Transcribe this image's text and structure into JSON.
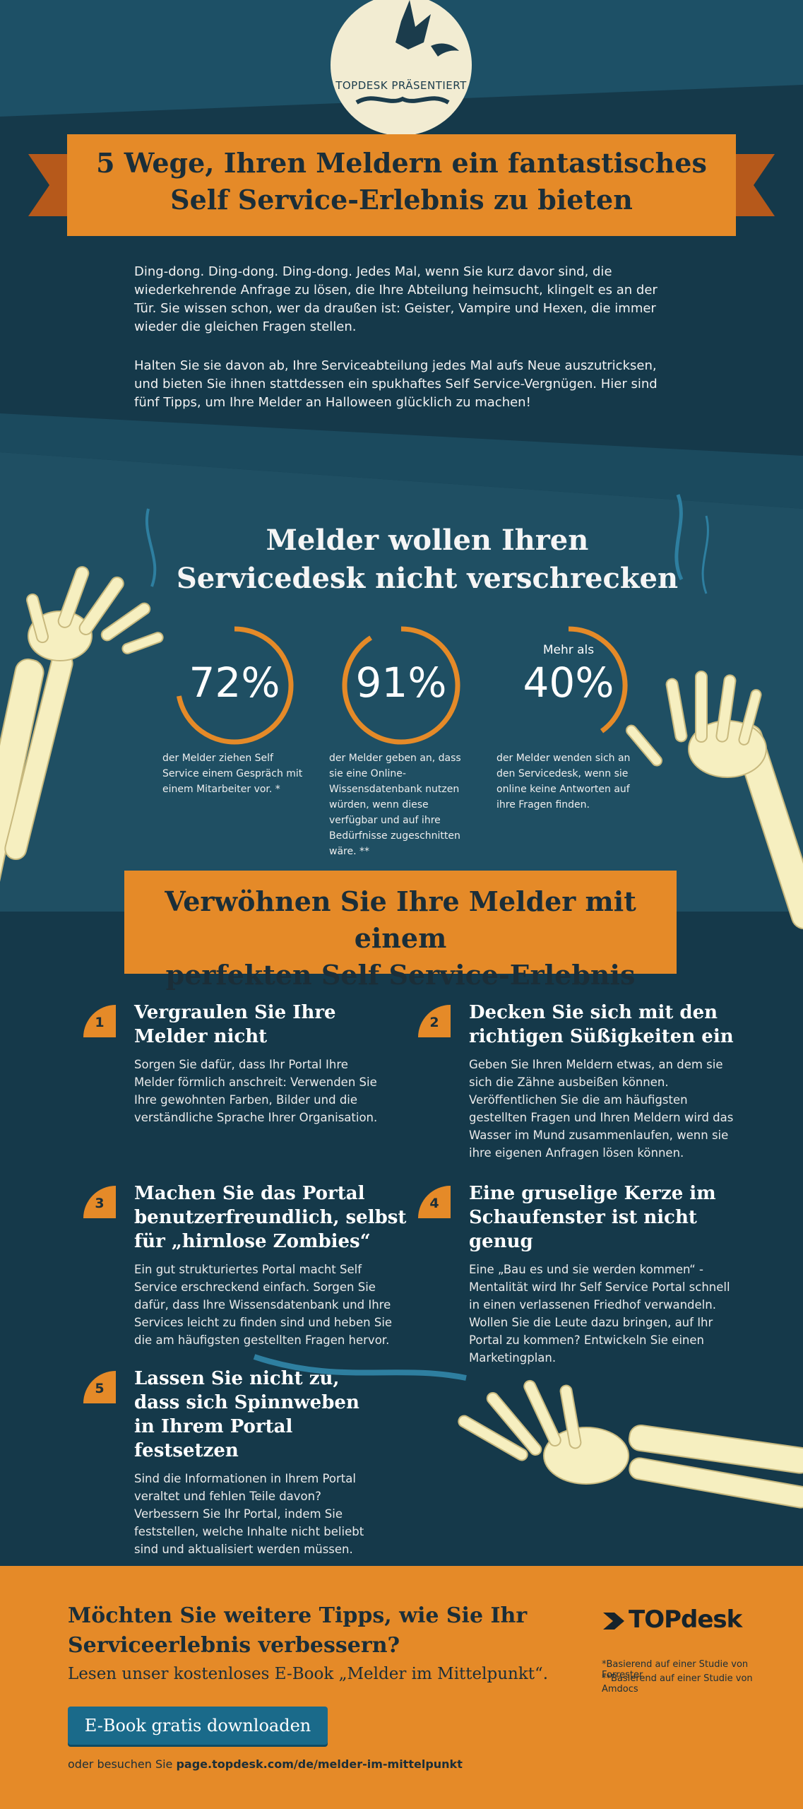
{
  "header": {
    "presents": "TOPDESK PRÄSENTIERT",
    "title_line1": "5 Wege, Ihren Meldern ein fantastisches",
    "title_line2": "Self Service-Erlebnis zu bieten"
  },
  "intro": {
    "paragraph1": "Ding-dong. Ding-dong. Ding-dong. Jedes Mal, wenn Sie kurz davor sind, die wiederkehrende Anfrage zu lösen, die Ihre Abteilung heimsucht, klingelt es an der Tür. Sie wissen schon, wer da draußen ist: Geister, Vampire und Hexen, die immer wieder die gleichen Fragen stellen.",
    "paragraph2": "Halten Sie sie davon ab, Ihre Serviceabteilung jedes Mal aufs Neue auszutricksen, und bieten Sie ihnen stattdessen ein spukhaftes Self Service-Vergnügen. Hier sind fünf Tipps, um Ihre Melder an Halloween glücklich zu machen!"
  },
  "stats_section": {
    "title_line1": "Melder wollen Ihren",
    "title_line2": "Servicedesk nicht verschrecken",
    "stats": [
      {
        "prefix": "",
        "value": "72%",
        "fraction": 0.72,
        "description": "der Melder ziehen Self Service einem Gespräch mit einem Mitarbeiter vor. *"
      },
      {
        "prefix": "",
        "value": "91%",
        "fraction": 0.91,
        "description": "der Melder geben an, dass sie eine Online-Wissensdatenbank nutzen würden, wenn diese verfügbar und auf ihre Bedürfnisse zugeschnitten wäre. **"
      },
      {
        "prefix": "Mehr als",
        "value": "40%",
        "fraction": 0.4,
        "description": "der Melder wenden sich an den Servicedesk, wenn sie online keine Antworten auf ihre Fragen finden."
      }
    ]
  },
  "tips_section": {
    "title_line1": "Verwöhnen Sie Ihre Melder mit einem",
    "title_line2": "perfekten Self Service-Erlebnis",
    "tips": [
      {
        "number": "1",
        "title": "Vergraulen Sie Ihre Melder nicht",
        "body": "Sorgen Sie dafür, dass Ihr Portal Ihre Melder förmlich anschreit: Verwenden Sie Ihre gewohnten Farben, Bilder und die verständliche Sprache Ihrer Organisation."
      },
      {
        "number": "2",
        "title": "Decken Sie sich mit den richtigen Süßigkeiten ein",
        "body": "Geben Sie Ihren Meldern etwas, an dem sie sich die Zähne ausbeißen können. Veröffentlichen Sie die am häufigsten gestellten Fragen und Ihren Meldern wird das Wasser im Mund zusammenlaufen, wenn sie ihre eigenen Anfragen lösen können."
      },
      {
        "number": "3",
        "title": "Machen Sie das Portal benutzerfreundlich, selbst für „hirnlose Zombies“",
        "body": "Ein gut strukturiertes Portal macht Self Service erschreckend einfach. Sorgen Sie dafür, dass Ihre Wissensdatenbank und Ihre Services leicht zu finden sind und heben Sie die am häufigsten gestellten Fragen hervor."
      },
      {
        "number": "4",
        "title": "Eine gruselige Kerze im Schaufenster ist nicht genug",
        "body": "Eine „Bau es und sie werden kommen“ -Mentalität wird Ihr Self Service Portal schnell in einen verlassenen Friedhof verwandeln. Wollen Sie die Leute dazu bringen, auf Ihr Portal zu kommen? Entwickeln Sie einen Marketingplan."
      },
      {
        "number": "5",
        "title": "Lassen Sie nicht zu, dass sich Spinnweben in Ihrem Portal festsetzen",
        "body": "Sind die Informationen in Ihrem Portal veraltet und fehlen Teile davon? Verbessern Sie Ihr Portal, indem Sie feststellen, welche Inhalte nicht beliebt sind und aktualisiert werden müssen."
      }
    ]
  },
  "footer": {
    "cta_title": "Möchten Sie weitere Tipps, wie Sie Ihr Serviceerlebnis verbessern?",
    "cta_subtitle": "Lesen unser kostenloses E-Book „Melder im Mittelpunkt“.",
    "button_label": "E-Book gratis downloaden",
    "alt_prefix": "oder besuchen Sie ",
    "alt_link": "page.topdesk.com/de/melder-im-mittelpunkt",
    "logo_text": "TOPdesk",
    "footnote1": "*Basierend auf einer Studie von Forrester",
    "footnote2": "**Basierend auf einer Studie von Amdocs"
  },
  "colors": {
    "background_dark": "#15394a",
    "background_mid": "#1b4a5e",
    "accent_orange": "#e58a28",
    "text_dark": "#1b2e38",
    "button_blue": "#1a6a8a",
    "bone": "#f6efc0"
  },
  "icons": [
    "moon-bat-icon",
    "skeleton-hand-icon",
    "logo-arrow-icon"
  ]
}
